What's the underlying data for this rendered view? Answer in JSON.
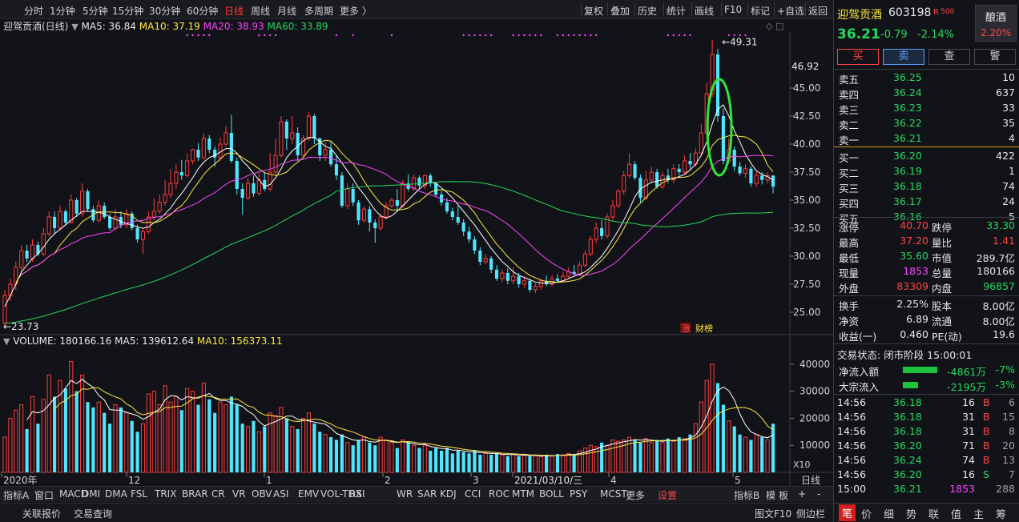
{
  "toolbar": {
    "periods": [
      "分时",
      "1分钟",
      "5分钟",
      "15分钟",
      "30分钟",
      "60分钟",
      "日线",
      "周线",
      "月线",
      "多周期",
      "更多 〉"
    ],
    "right": [
      "复权",
      "叠加",
      "历史",
      "统计",
      "画线",
      "F10",
      "标记",
      "+自选",
      "返回"
    ]
  },
  "legend": {
    "title": "迎驾贡酒(日线)",
    "ma5": "MA5: 36.84",
    "ma10": "MA10: 37.19",
    "ma20": "MA20: 38.93",
    "ma60": "MA60: 33.89"
  },
  "price_axis": {
    "current": "46.92",
    "ticks": [
      "45.00",
      "42.50",
      "40.00",
      "37.50",
      "35.00",
      "32.50",
      "30.00",
      "27.50",
      "25.00"
    ]
  },
  "annotations": {
    "high": "49.31",
    "low": "23.73",
    "badge1": "涨",
    "badge2": "财榜"
  },
  "volume_legend": {
    "label": "VOLUME: 180166.16",
    "ma5": "MA5: 139612.64",
    "ma10": "MA10: 156373.11"
  },
  "volume_axis": {
    "ticks": [
      "40000",
      "30000",
      "20000",
      "10000"
    ],
    "unit": "X10"
  },
  "xaxis": {
    "labels": [
      "2020年",
      "12",
      "1",
      "2",
      "3",
      "2021/03/10/三",
      "4",
      "5"
    ],
    "period": "日线"
  },
  "indicators": {
    "tab": "指标A",
    "items": [
      "窗口",
      "MACD",
      "DMI",
      "DMA",
      "FSL",
      "TRIX",
      "BRAR",
      "CR",
      "VR",
      "OBV",
      "ASI",
      "EMV",
      "VOL-TDX",
      "RSI",
      "WR",
      "SAR",
      "KDJ",
      "CCI",
      "ROC",
      "MTM",
      "BOLL",
      "PSY",
      "MCST",
      "更多",
      "设置"
    ],
    "right": [
      "指标B",
      "模",
      "板",
      "+",
      "-"
    ]
  },
  "bottom": {
    "items": [
      "关联报价",
      "交易查询"
    ],
    "right": [
      "图文F10",
      "侧边栏"
    ]
  },
  "quote": {
    "name": "迎驾贡酒",
    "code": "603198",
    "tag": "R",
    "tag_sub": "500",
    "price": "36.21",
    "change": "-0.79",
    "pct": "-2.14%",
    "sector": "酿酒",
    "sector_pct": "2.20%",
    "buttons": [
      "买",
      "卖",
      "查",
      "警"
    ],
    "asks": [
      {
        "label": "卖五",
        "price": "36.25",
        "vol": "10"
      },
      {
        "label": "卖四",
        "price": "36.24",
        "vol": "637"
      },
      {
        "label": "卖三",
        "price": "36.23",
        "vol": "33"
      },
      {
        "label": "卖二",
        "price": "36.22",
        "vol": "35"
      },
      {
        "label": "卖一",
        "price": "36.21",
        "vol": "4"
      }
    ],
    "bids": [
      {
        "label": "买一",
        "price": "36.20",
        "vol": "422"
      },
      {
        "label": "买二",
        "price": "36.19",
        "vol": "1"
      },
      {
        "label": "买三",
        "price": "36.18",
        "vol": "74"
      },
      {
        "label": "买四",
        "price": "36.17",
        "vol": "24"
      },
      {
        "label": "买五",
        "price": "36.16",
        "vol": "5"
      }
    ],
    "stats": [
      {
        "k1": "涨停",
        "v1": "40.70",
        "k2": "跌停",
        "v2": "33.30"
      },
      {
        "k1": "最高",
        "v1": "37.20",
        "k2": "量比",
        "v2": "1.41"
      },
      {
        "k1": "最低",
        "v1": "35.60",
        "k2": "市值",
        "v2": "289.7亿"
      },
      {
        "k1": "现量",
        "v1": "1853",
        "k2": "总量",
        "v2": "180166"
      },
      {
        "k1": "外盘",
        "v1": "83309",
        "k2": "内盘",
        "v2": "96857"
      }
    ],
    "fundamentals": [
      {
        "k1": "换手",
        "v1": "2.25%",
        "k2": "股本",
        "v2": "8.00亿"
      },
      {
        "k1": "净资",
        "v1": "6.89",
        "k2": "流通",
        "v2": "8.00亿"
      },
      {
        "k1": "收益(一)",
        "v1": "0.460",
        "k2": "PE(动)",
        "v2": "19.6"
      }
    ],
    "trade_status": "交易状态: 闭市阶段 15:00:01",
    "flows": [
      {
        "label": "净流入额",
        "value": "-4861万",
        "pct": "-7%",
        "ratio": 0.7
      },
      {
        "label": "大宗流入",
        "value": "-2195万",
        "pct": "-3%",
        "ratio": 0.3
      }
    ],
    "ticks": [
      {
        "time": "14:56",
        "price": "36.18",
        "vol": "16",
        "side": "B",
        "num": "6"
      },
      {
        "time": "14:56",
        "price": "36.18",
        "vol": "31",
        "side": "B",
        "num": "15"
      },
      {
        "time": "14:56",
        "price": "36.18",
        "vol": "31",
        "side": "B",
        "num": "8"
      },
      {
        "time": "14:56",
        "price": "36.20",
        "vol": "71",
        "side": "B",
        "num": "20"
      },
      {
        "time": "14:56",
        "price": "36.24",
        "vol": "74",
        "side": "B",
        "num": "13"
      },
      {
        "time": "14:56",
        "price": "36.20",
        "vol": "16",
        "side": "S",
        "num": "7"
      },
      {
        "time": "15:00",
        "price": "36.21",
        "vol": "1853",
        "side": "",
        "num": "288"
      }
    ],
    "tabs": [
      "笔",
      "价",
      "细",
      "势",
      "联",
      "值",
      "主",
      "筹"
    ]
  },
  "chart_data": {
    "type": "candlestick",
    "price_range": [
      23.0,
      50.0
    ],
    "volume_range": [
      0,
      45000
    ],
    "candles": [
      [
        24,
        26.5,
        23.73,
        27
      ],
      [
        26.5,
        27.5,
        26,
        28
      ],
      [
        27.5,
        29,
        27,
        29.5
      ],
      [
        29,
        30.5,
        28.5,
        31
      ],
      [
        30.5,
        29.8,
        29.5,
        31
      ],
      [
        29.8,
        31,
        29.5,
        31.5
      ],
      [
        31,
        30.2,
        30,
        31.3
      ],
      [
        30.2,
        32,
        30,
        32.5
      ],
      [
        32,
        33.5,
        31.8,
        34
      ],
      [
        33.5,
        32.5,
        32,
        34
      ],
      [
        32.5,
        34,
        32.3,
        34.5
      ],
      [
        34,
        33,
        32.8,
        34.2
      ],
      [
        33,
        35,
        32.9,
        35.5
      ],
      [
        35,
        33.8,
        33.5,
        35.2
      ],
      [
        33.8,
        35.8,
        33.5,
        36.5
      ],
      [
        35.8,
        34.2,
        34,
        36
      ],
      [
        34.2,
        33.2,
        33,
        34.5
      ],
      [
        33.2,
        34.5,
        33,
        35
      ],
      [
        34.5,
        33.5,
        33.3,
        34.8
      ],
      [
        33.5,
        32.5,
        32.3,
        33.8
      ],
      [
        32.5,
        33.5,
        32.3,
        34.2
      ],
      [
        33.5,
        32.8,
        32.5,
        34
      ],
      [
        32.8,
        33.8,
        32.5,
        34.2
      ],
      [
        33.8,
        32.5,
        32.3,
        34
      ],
      [
        32.5,
        31.5,
        31.2,
        32.8
      ],
      [
        31.5,
        32.2,
        30.2,
        32.5
      ],
      [
        32.2,
        33.5,
        32,
        34
      ],
      [
        33.5,
        34,
        33.2,
        35.2
      ],
      [
        34,
        34.8,
        33.8,
        35.5
      ],
      [
        34.8,
        35.5,
        34.5,
        36.8
      ],
      [
        35.5,
        36.5,
        35.2,
        37.8
      ],
      [
        36.5,
        37.5,
        36,
        38.2
      ],
      [
        37.5,
        37.2,
        36.8,
        38.6
      ],
      [
        37.2,
        38.5,
        37,
        39.2
      ],
      [
        38.5,
        39.5,
        38.2,
        39.6
      ],
      [
        39.5,
        38.8,
        38.5,
        40.1
      ],
      [
        38.8,
        40.5,
        38.6,
        41
      ],
      [
        40.5,
        39.5,
        39.2,
        40.8
      ],
      [
        39.5,
        38.8,
        38,
        39.8
      ],
      [
        38.8,
        40,
        38.5,
        40.6
      ],
      [
        40,
        41,
        39.8,
        41.6
      ],
      [
        41,
        38.5,
        38.3,
        42.6
      ],
      [
        38.5,
        36,
        35.5,
        38.8
      ],
      [
        36,
        35.2,
        33.7,
        36.5
      ],
      [
        35.2,
        36.5,
        35,
        37
      ],
      [
        36.5,
        35.6,
        35.3,
        37.2
      ],
      [
        35.6,
        36.8,
        35.4,
        37.5
      ],
      [
        36.8,
        36,
        35.8,
        37.5
      ],
      [
        36,
        37.5,
        35.8,
        39.2
      ],
      [
        37.5,
        39,
        37.3,
        40.5
      ],
      [
        39,
        42,
        38.8,
        42.5
      ],
      [
        42,
        40.5,
        39.5,
        42.2
      ],
      [
        40.5,
        41,
        40,
        42.5
      ],
      [
        41,
        39,
        38.5,
        41.5
      ],
      [
        39,
        40.5,
        38.8,
        40.8
      ],
      [
        40.5,
        42.5,
        40.3,
        42.9
      ],
      [
        42.5,
        40.5,
        40,
        42.7
      ],
      [
        40.5,
        39,
        38.5,
        40.6
      ],
      [
        39,
        39.5,
        38.5,
        40.2
      ],
      [
        39.5,
        38.2,
        38,
        40.3
      ],
      [
        38.2,
        37.2,
        36.8,
        39
      ],
      [
        37.2,
        34.5,
        34.3,
        37.5
      ],
      [
        34.5,
        36,
        34.2,
        36.5
      ],
      [
        36,
        34.8,
        34.5,
        36.5
      ],
      [
        34.8,
        33.2,
        32.8,
        35
      ],
      [
        33.2,
        34.2,
        33,
        34.5
      ],
      [
        34.2,
        33,
        32.2,
        34.5
      ],
      [
        33,
        32.5,
        31.2,
        33.3
      ],
      [
        32.5,
        33.5,
        32.3,
        33.8
      ],
      [
        33.5,
        34.5,
        33.3,
        34.8
      ],
      [
        34.5,
        35,
        34.3,
        35.2
      ],
      [
        35,
        34.5,
        34,
        36
      ],
      [
        34.5,
        36.5,
        34.3,
        36.8
      ],
      [
        36.5,
        36,
        35.8,
        37.3
      ],
      [
        36,
        37,
        35.8,
        37.3
      ],
      [
        37,
        36.3,
        36,
        37.2
      ],
      [
        36.3,
        37.2,
        36,
        37.3
      ],
      [
        37.2,
        36.5,
        36.2,
        37.4
      ],
      [
        36.5,
        35.5,
        35.3,
        36.6
      ],
      [
        35.5,
        34.8,
        34.5,
        35.8
      ],
      [
        34.8,
        34,
        33.8,
        35.2
      ],
      [
        34,
        33.5,
        33.2,
        34.3
      ],
      [
        33.5,
        33,
        32.8,
        34.5
      ],
      [
        33,
        32.2,
        31.8,
        33.3
      ],
      [
        32.2,
        31.5,
        31.2,
        32.6
      ],
      [
        31.5,
        30.5,
        30.2,
        31.8
      ],
      [
        30.5,
        29.5,
        29.2,
        30.8
      ],
      [
        29.5,
        29.8,
        29.3,
        30.2
      ],
      [
        29.8,
        28.8,
        28.5,
        30
      ],
      [
        28.8,
        28,
        27.8,
        29.2
      ],
      [
        28,
        28.5,
        27.7,
        28.8
      ],
      [
        28.5,
        27.8,
        27.5,
        28.9
      ],
      [
        27.8,
        28.2,
        27.5,
        29
      ],
      [
        28.2,
        27.5,
        27.2,
        28.5
      ],
      [
        27.5,
        27.8,
        27.2,
        28.2
      ],
      [
        27.8,
        27,
        26.8,
        28
      ],
      [
        27,
        27.3,
        26.7,
        27.6
      ],
      [
        27.3,
        27.8,
        27,
        28
      ],
      [
        27.8,
        27.5,
        27.3,
        28.3
      ],
      [
        27.5,
        28,
        27.3,
        28.3
      ],
      [
        28,
        27.8,
        27.6,
        28.4
      ],
      [
        27.8,
        28.2,
        27.7,
        28.6
      ],
      [
        28.2,
        28.6,
        28,
        29
      ],
      [
        28.6,
        28.4,
        28.2,
        29.2
      ],
      [
        28.4,
        29.2,
        28.3,
        29.5
      ],
      [
        29.2,
        30.2,
        29,
        30.5
      ],
      [
        30.2,
        31.5,
        30,
        31.8
      ],
      [
        31.5,
        32.5,
        31.2,
        33
      ],
      [
        32.5,
        31.8,
        31.5,
        33.2
      ],
      [
        31.8,
        33.5,
        31.6,
        33.8
      ],
      [
        33.5,
        34.5,
        33.2,
        35
      ],
      [
        34.5,
        35.8,
        34.3,
        36
      ],
      [
        35.8,
        37.2,
        35.5,
        37.6
      ],
      [
        37.2,
        38.2,
        37,
        39.2
      ],
      [
        38.2,
        37,
        36.8,
        38.5
      ],
      [
        37,
        35.2,
        34.8,
        37.3
      ],
      [
        35.2,
        36.8,
        35,
        37.6
      ],
      [
        36.8,
        37.5,
        36.5,
        38
      ],
      [
        37.5,
        36.2,
        36,
        37.8
      ],
      [
        36.2,
        37.2,
        36,
        37.5
      ],
      [
        37.2,
        36.8,
        36.5,
        37.8
      ],
      [
        36.8,
        37.8,
        36.5,
        38.2
      ],
      [
        37.8,
        37.5,
        37.2,
        38.2
      ],
      [
        37.5,
        38.5,
        37.3,
        39
      ],
      [
        38.5,
        38.2,
        37.8,
        39.2
      ],
      [
        38.2,
        39.2,
        38,
        39.6
      ],
      [
        39.2,
        41,
        39,
        41.8
      ],
      [
        41,
        44.5,
        40.8,
        45.5
      ],
      [
        44.5,
        48,
        44.2,
        49.31
      ],
      [
        48,
        42.5,
        42,
        48.5
      ],
      [
        42.5,
        38.5,
        38.2,
        43.2
      ],
      [
        38.5,
        39.5,
        38.2,
        40.5
      ],
      [
        39.5,
        38,
        37.6,
        39.8
      ],
      [
        38,
        37.4,
        37.2,
        38.4
      ],
      [
        37.4,
        37.8,
        37,
        38.2
      ],
      [
        37.8,
        36.5,
        36.2,
        38
      ],
      [
        36.5,
        37.2,
        36.2,
        37.5
      ],
      [
        37.2,
        36.8,
        36.4,
        37.5
      ],
      [
        36.8,
        37.2,
        36.5,
        37.5
      ],
      [
        37.2,
        36.21,
        35.6,
        37.2
      ]
    ],
    "volumes": [
      13000,
      20000,
      23000,
      25000,
      16000,
      28000,
      18000,
      27000,
      36000,
      28000,
      34000,
      31000,
      41000,
      30000,
      36000,
      26000,
      24000,
      26000,
      22000,
      18000,
      25000,
      24000,
      22000,
      19000,
      15000,
      18000,
      29000,
      30000,
      25000,
      32000,
      26000,
      28000,
      23000,
      31000,
      30000,
      25000,
      33000,
      27000,
      22000,
      26000,
      25000,
      28000,
      25000,
      18000,
      17000,
      19000,
      15000,
      17000,
      22000,
      21000,
      24000,
      20000,
      17000,
      16000,
      20000,
      22000,
      18000,
      15000,
      14000,
      13000,
      12000,
      14000,
      11000,
      10000,
      12000,
      13000,
      11000,
      10000,
      13000,
      12000,
      11000,
      9000,
      12000,
      11000,
      10000,
      9000,
      10000,
      8000,
      9000,
      8000,
      9000,
      7000,
      8000,
      7500,
      7000,
      8000,
      6500,
      7000,
      6500,
      7000,
      6500,
      6000,
      6800,
      6000,
      6500,
      6000,
      6200,
      5800,
      6500,
      6000,
      6800,
      6500,
      7000,
      6500,
      8000,
      9000,
      10000,
      9500,
      11000,
      10000,
      12000,
      11500,
      12000,
      13000,
      12000,
      11000,
      12500,
      11000,
      12000,
      11000,
      12500,
      11500,
      13000,
      12500,
      14000,
      18000,
      26000,
      34000,
      40000,
      33000,
      25000,
      19000,
      17000,
      14000,
      13000,
      12000,
      14000,
      13000,
      12000,
      18000
    ],
    "ma5_line": [
      25.5,
      26.5,
      27.5,
      28.6,
      29.2,
      29.8,
      30.2,
      30.8,
      31.5,
      32,
      32.4,
      32.8,
      33.2,
      33.6,
      34,
      34,
      34,
      33.9,
      33.8,
      33.5,
      33.3,
      33.1,
      32.9,
      32.8,
      32.6,
      32.5,
      32.6,
      33,
      33.3,
      33.8,
      34.3,
      35,
      35.6,
      36.3,
      37,
      37.8,
      38.4,
      38.8,
      39,
      39.3,
      39.6,
      39.6,
      39.2,
      38.5,
      38,
      37.4,
      36.8,
      36.2,
      36.4,
      37,
      37.8,
      38.8,
      39.4,
      39.8,
      40.3,
      40.6,
      40.6,
      40.2,
      39.8,
      39.6,
      39,
      38.3,
      37.6,
      36.9,
      36.1,
      35.5,
      34.8,
      34.1,
      33.6,
      33.4,
      33.6,
      34,
      34.5,
      35,
      35.5,
      36,
      36.4,
      36.6,
      36.5,
      36.1,
      35.7,
      35.2,
      34.6,
      34,
      33.4,
      32.8,
      32.1,
      31.4,
      30.7,
      30.1,
      29.5,
      29.1,
      28.6,
      28.3,
      28.1,
      27.9,
      27.7,
      27.6,
      27.6,
      27.6,
      27.7,
      27.8,
      28,
      28.2,
      28.4,
      28.6,
      29,
      29.5,
      30,
      30.7,
      31.5,
      32.3,
      33.2,
      34.2,
      35.3,
      36,
      36.3,
      36.6,
      36.7,
      36.8,
      36.9,
      36.9,
      37.1,
      37.3,
      37.7,
      38.2,
      39,
      40.2,
      41.8,
      43.1,
      43.5,
      42.5,
      41.2,
      40.2,
      39.1,
      38.3,
      37.6,
      37.3,
      37.1,
      36.8
    ]
  }
}
